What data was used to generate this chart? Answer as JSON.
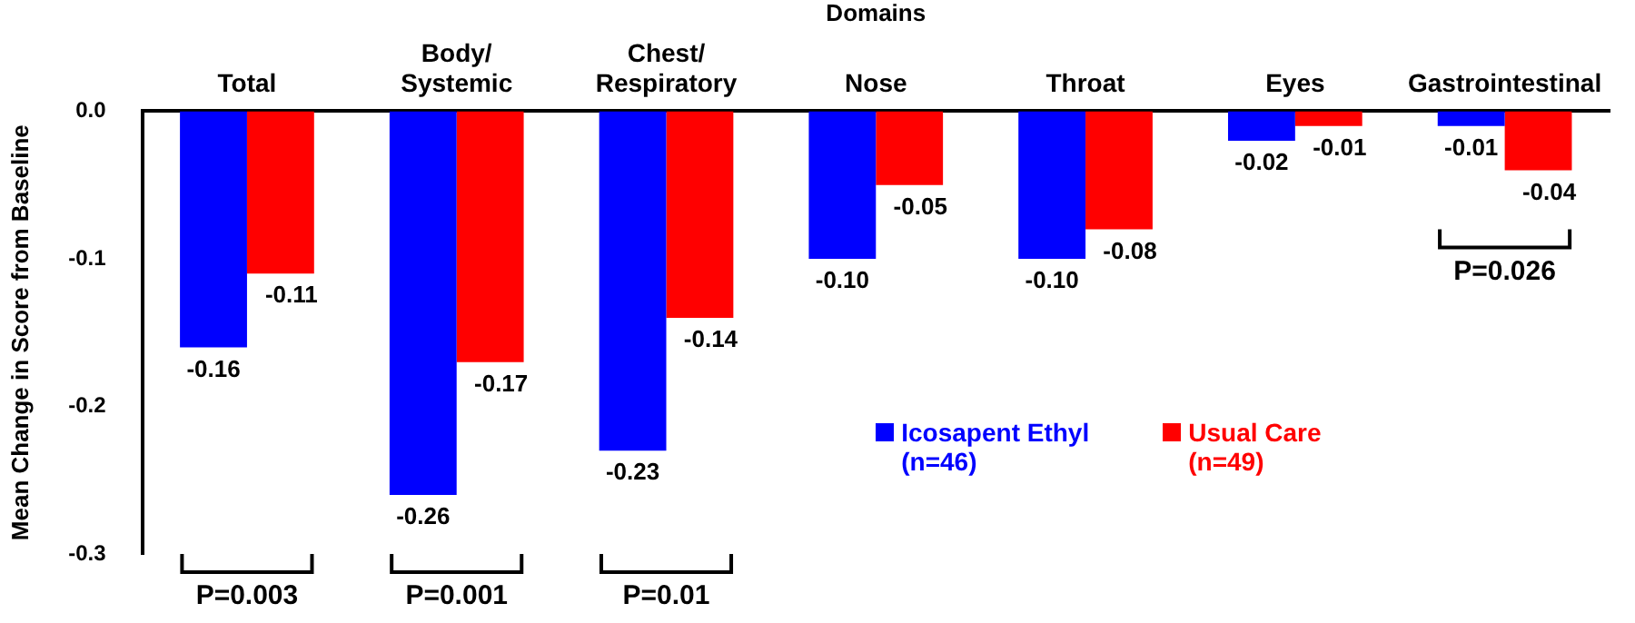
{
  "chart_data": {
    "type": "bar",
    "xlabel": "Domains",
    "ylabel": "Mean Change in Score from Baseline",
    "categories": [
      "Total",
      "Body/ Systemic",
      "Chest/ Respiratory",
      "Nose",
      "Throat",
      "Eyes",
      "Gastrointestinal"
    ],
    "series": [
      {
        "name": "Icosapent Ethyl (n=46)",
        "color": "#0000ff",
        "values": [
          -0.16,
          -0.26,
          -0.23,
          -0.1,
          -0.1,
          -0.02,
          -0.01
        ],
        "value_labels": [
          "-0.16",
          "-0.26",
          "-0.23",
          "-0.10",
          "-0.10",
          "-0.02",
          "-0.01"
        ]
      },
      {
        "name": "Usual Care (n=49)",
        "color": "#ff0000",
        "values": [
          -0.11,
          -0.17,
          -0.14,
          -0.05,
          -0.08,
          -0.01,
          -0.04
        ],
        "value_labels": [
          "-0.11",
          "-0.17",
          "-0.14",
          "-0.05",
          "-0.08",
          "-0.01",
          "-0.04"
        ]
      }
    ],
    "ylim": [
      -0.3,
      0
    ],
    "yticks": [
      {
        "value": 0,
        "label": "0.0"
      },
      -0.1,
      -0.2,
      -0.3
    ],
    "grid": false,
    "legend": "bottom",
    "annotations": [
      "P=0.003",
      "P=0.001",
      "P=0.01",
      "P=0.026"
    ]
  }
}
